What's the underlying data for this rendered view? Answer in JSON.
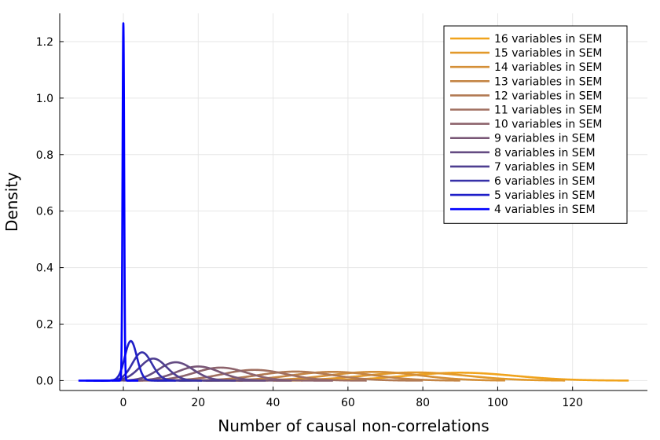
{
  "chart_data": {
    "type": "line",
    "title": "",
    "xlabel": "Number of causal non-correlations",
    "ylabel": "Density",
    "xlim": [
      -17,
      140
    ],
    "ylim": [
      -0.035,
      1.3
    ],
    "xticks": [
      0,
      20,
      40,
      60,
      80,
      100,
      120
    ],
    "xtick_labels": [
      "0",
      "20",
      "40",
      "60",
      "80",
      "100",
      "120"
    ],
    "yticks": [
      0.0,
      0.2,
      0.4,
      0.6,
      0.8,
      1.0,
      1.2
    ],
    "ytick_labels": [
      "0.0",
      "0.2",
      "0.4",
      "0.6",
      "0.8",
      "1.0",
      "1.2"
    ],
    "grid": true,
    "legend_position": "top-right",
    "series": [
      {
        "name": "16 variables in SEM",
        "color": "#f0a31c",
        "peak_x": 90,
        "peak_y": 0.028,
        "sd": 14.5,
        "min_x": 40,
        "max_x": 135
      },
      {
        "name": "15 variables in SEM",
        "color": "#e2992a",
        "peak_x": 78,
        "peak_y": 0.029,
        "sd": 13.5,
        "min_x": 30,
        "max_x": 118
      },
      {
        "name": "14 variables in SEM",
        "color": "#d48f37",
        "peak_x": 67,
        "peak_y": 0.031,
        "sd": 12.0,
        "min_x": 22,
        "max_x": 102
      },
      {
        "name": "13 variables in SEM",
        "color": "#c48545",
        "peak_x": 56,
        "peak_y": 0.031,
        "sd": 11.0,
        "min_x": 15,
        "max_x": 90
      },
      {
        "name": "12 variables in SEM",
        "color": "#b27a53",
        "peak_x": 46,
        "peak_y": 0.032,
        "sd": 10.0,
        "min_x": 9,
        "max_x": 80
      },
      {
        "name": "11 variables in SEM",
        "color": "#a06f60",
        "peak_x": 35,
        "peak_y": 0.038,
        "sd": 8.5,
        "min_x": 4,
        "max_x": 65
      },
      {
        "name": "10 variables in SEM",
        "color": "#8d636c",
        "peak_x": 26,
        "peak_y": 0.046,
        "sd": 7.0,
        "min_x": 1,
        "max_x": 56
      },
      {
        "name": "9 variables in SEM",
        "color": "#795776",
        "peak_x": 20,
        "peak_y": 0.05,
        "sd": 5.8,
        "min_x": 0,
        "max_x": 45
      },
      {
        "name": "8 variables in SEM",
        "color": "#644b82",
        "peak_x": 14,
        "peak_y": 0.065,
        "sd": 4.6,
        "min_x": -3,
        "max_x": 38
      },
      {
        "name": "7 variables in SEM",
        "color": "#4e3e90",
        "peak_x": 8,
        "peak_y": 0.078,
        "sd": 3.6,
        "min_x": -6,
        "max_x": 30
      },
      {
        "name": "6 variables in SEM",
        "color": "#3630a8",
        "peak_x": 5,
        "peak_y": 0.1,
        "sd": 2.6,
        "min_x": -8,
        "max_x": 21
      },
      {
        "name": "5 variables in SEM",
        "color": "#1e1ec8",
        "peak_x": 2,
        "peak_y": 0.14,
        "sd": 1.6,
        "min_x": -10,
        "max_x": 14
      },
      {
        "name": "4 variables in SEM",
        "color": "#0000ff",
        "peak_x": 0,
        "peak_y": 1.265,
        "sd": 0.22,
        "min_x": -12,
        "max_x": 4
      }
    ]
  }
}
